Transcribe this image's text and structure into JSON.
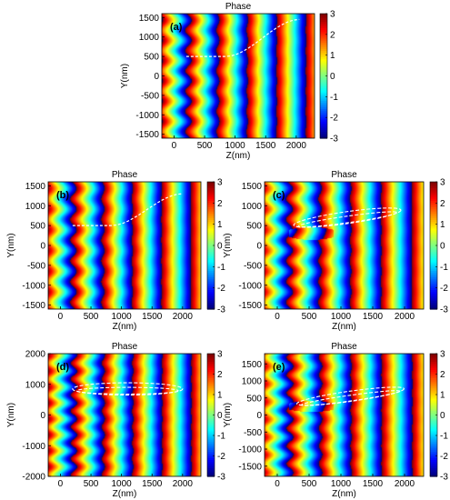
{
  "chart_data": [
    {
      "type": "heatmap",
      "title": "Phase",
      "panel_label": "(a)",
      "xlabel": "Z(nm)",
      "ylabel": "Y(nm)",
      "xlim": [
        -200,
        2300
      ],
      "ylim": [
        -1600,
        1600
      ],
      "x_ticks": [
        0,
        500,
        1000,
        1500,
        2000
      ],
      "y_ticks": [
        1500,
        1000,
        500,
        0,
        -500,
        -1000,
        -1500
      ],
      "colorbar": {
        "range": [
          -3,
          3
        ],
        "ticks": [
          3,
          2,
          1,
          0,
          -1,
          -2,
          -3
        ],
        "colormap": "jet"
      },
      "wavelength_nm": 480,
      "phase_offset_rad": 0.0,
      "obstacle": {
        "type": "diagonal_line",
        "z_start": 200,
        "z_end": 2050,
        "y_left": 500,
        "y_right": 1450
      }
    },
    {
      "type": "heatmap",
      "title": "Phase",
      "panel_label": "(b)",
      "xlabel": "Z(nm)",
      "ylabel": "Y(nm)",
      "xlim": [
        -200,
        2300
      ],
      "ylim": [
        -1600,
        1600
      ],
      "x_ticks": [
        0,
        500,
        1000,
        1500,
        2000
      ],
      "y_ticks": [
        1500,
        1000,
        500,
        0,
        -500,
        -1000,
        -1500
      ],
      "colorbar": {
        "range": [
          -3,
          3
        ],
        "ticks": [
          3,
          2,
          1,
          0,
          -1,
          -2,
          -3
        ],
        "colormap": "jet"
      },
      "wavelength_nm": 480,
      "phase_offset_rad": 0.3,
      "obstacle": {
        "type": "diagonal_line",
        "z_start": 200,
        "z_end": 2000,
        "y_left": 500,
        "y_right": 1300
      }
    },
    {
      "type": "heatmap",
      "title": "Phase",
      "panel_label": "(c)",
      "xlabel": "Z(nm)",
      "ylabel": "Y(nm)",
      "xlim": [
        -200,
        2300
      ],
      "ylim": [
        -1600,
        1600
      ],
      "x_ticks": [
        0,
        500,
        1000,
        1500,
        2000
      ],
      "y_ticks": [
        1500,
        1000,
        500,
        0,
        -500,
        -1000,
        -1500
      ],
      "colorbar": {
        "range": [
          -3,
          3
        ],
        "ticks": [
          3,
          2,
          1,
          0,
          -1,
          -2,
          -3
        ],
        "colormap": "jet"
      },
      "wavelength_nm": 480,
      "phase_offset_rad": 0.6,
      "obstacle": {
        "type": "double_ellipse",
        "z_center": 1100,
        "y_center": 700,
        "z_halfwidth": 850,
        "y_halfwidth": 150
      }
    },
    {
      "type": "heatmap",
      "title": "Phase",
      "panel_label": "(d)",
      "xlabel": "Z(nm)",
      "ylabel": "Y(nm)",
      "xlim": [
        -200,
        2300
      ],
      "ylim": [
        -2000,
        2000
      ],
      "x_ticks": [
        0,
        500,
        1000,
        1500,
        2000
      ],
      "y_ticks": [
        2000,
        1000,
        0,
        -1000,
        -2000
      ],
      "colorbar": {
        "range": [
          -3,
          3
        ],
        "ticks": [
          3,
          2,
          1,
          0,
          -1,
          -2,
          -3
        ],
        "colormap": "jet"
      },
      "wavelength_nm": 480,
      "phase_offset_rad": 0.2,
      "obstacle": {
        "type": "double_ellipse",
        "z_center": 1100,
        "y_center": 850,
        "z_halfwidth": 900,
        "y_halfwidth": 200
      }
    },
    {
      "type": "heatmap",
      "title": "Phase",
      "panel_label": "(e)",
      "xlabel": "Z(nm)",
      "ylabel": "Y(nm)",
      "xlim": [
        -200,
        2300
      ],
      "ylim": [
        -1800,
        1800
      ],
      "x_ticks": [
        0,
        500,
        1000,
        1500,
        2000
      ],
      "y_ticks": [
        1500,
        1000,
        500,
        0,
        -500,
        -1000,
        -1500
      ],
      "colorbar": {
        "range": [
          -3,
          3
        ],
        "ticks": [
          3,
          2,
          1,
          0,
          -1,
          -2,
          -3
        ],
        "colormap": "jet"
      },
      "wavelength_nm": 480,
      "phase_offset_rad": 0.5,
      "obstacle": {
        "type": "double_ellipse",
        "z_center": 1150,
        "y_center": 550,
        "z_halfwidth": 850,
        "y_halfwidth": 150
      }
    }
  ]
}
